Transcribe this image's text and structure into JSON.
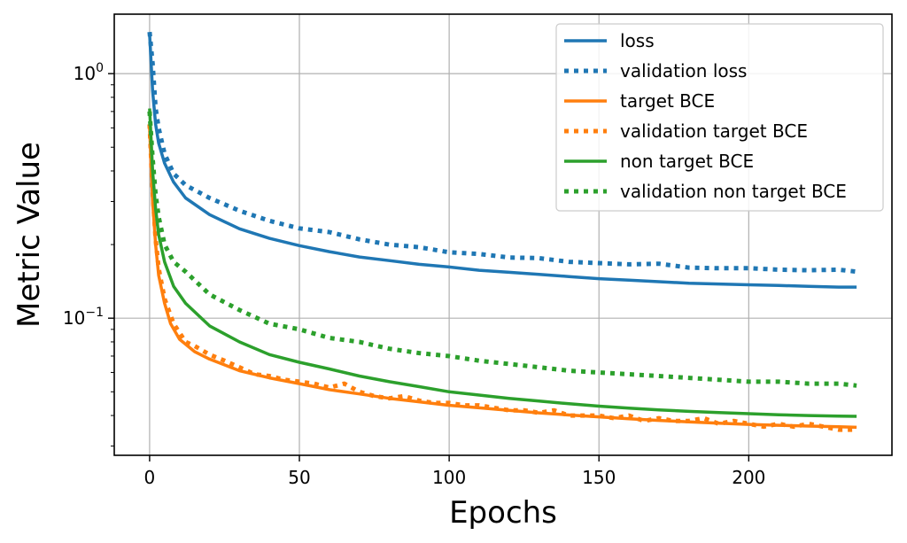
{
  "chart_data": {
    "type": "line",
    "xlabel": "Epochs",
    "ylabel": "Metric Value",
    "yscale": "log",
    "xlim": [
      -11.8,
      247.8
    ],
    "ylim": [
      0.0275,
      1.75
    ],
    "x_ticks": [
      0,
      50,
      100,
      150,
      200
    ],
    "y_ticks": [
      {
        "value": 1.0,
        "base": "10",
        "exp": "0"
      },
      {
        "value": 0.1,
        "base": "10",
        "exp": "−1"
      }
    ],
    "grid": true,
    "legend_position": "top-right",
    "series": [
      {
        "name": "loss",
        "color": "#1f77b4",
        "style": "solid",
        "points": [
          [
            0,
            1.45
          ],
          [
            1,
            0.85
          ],
          [
            2,
            0.62
          ],
          [
            3,
            0.52
          ],
          [
            5,
            0.43
          ],
          [
            8,
            0.36
          ],
          [
            12,
            0.31
          ],
          [
            20,
            0.265
          ],
          [
            30,
            0.232
          ],
          [
            40,
            0.212
          ],
          [
            50,
            0.198
          ],
          [
            60,
            0.187
          ],
          [
            70,
            0.178
          ],
          [
            80,
            0.172
          ],
          [
            90,
            0.166
          ],
          [
            100,
            0.162
          ],
          [
            110,
            0.157
          ],
          [
            120,
            0.154
          ],
          [
            130,
            0.151
          ],
          [
            140,
            0.148
          ],
          [
            150,
            0.145
          ],
          [
            160,
            0.143
          ],
          [
            170,
            0.141
          ],
          [
            180,
            0.139
          ],
          [
            190,
            0.138
          ],
          [
            200,
            0.137
          ],
          [
            210,
            0.136
          ],
          [
            220,
            0.135
          ],
          [
            230,
            0.134
          ],
          [
            236,
            0.134
          ]
        ]
      },
      {
        "name": "validation loss",
        "color": "#1f77b4",
        "style": "dotted",
        "points": [
          [
            0,
            1.48
          ],
          [
            1,
            1.1
          ],
          [
            2,
            0.72
          ],
          [
            3,
            0.6
          ],
          [
            5,
            0.47
          ],
          [
            8,
            0.39
          ],
          [
            12,
            0.35
          ],
          [
            20,
            0.31
          ],
          [
            30,
            0.275
          ],
          [
            40,
            0.25
          ],
          [
            50,
            0.233
          ],
          [
            60,
            0.225
          ],
          [
            70,
            0.21
          ],
          [
            80,
            0.2
          ],
          [
            90,
            0.195
          ],
          [
            100,
            0.186
          ],
          [
            110,
            0.183
          ],
          [
            120,
            0.177
          ],
          [
            130,
            0.176
          ],
          [
            140,
            0.17
          ],
          [
            150,
            0.168
          ],
          [
            160,
            0.166
          ],
          [
            170,
            0.167
          ],
          [
            180,
            0.161
          ],
          [
            190,
            0.16
          ],
          [
            200,
            0.16
          ],
          [
            210,
            0.158
          ],
          [
            220,
            0.157
          ],
          [
            230,
            0.158
          ],
          [
            236,
            0.155
          ]
        ]
      },
      {
        "name": "target BCE",
        "color": "#ff7f0e",
        "style": "solid",
        "points": [
          [
            0,
            0.6
          ],
          [
            1,
            0.3
          ],
          [
            2,
            0.2
          ],
          [
            3,
            0.15
          ],
          [
            5,
            0.115
          ],
          [
            7,
            0.095
          ],
          [
            10,
            0.082
          ],
          [
            15,
            0.073
          ],
          [
            20,
            0.068
          ],
          [
            30,
            0.061
          ],
          [
            40,
            0.057
          ],
          [
            50,
            0.054
          ],
          [
            60,
            0.051
          ],
          [
            70,
            0.049
          ],
          [
            80,
            0.047
          ],
          [
            90,
            0.0455
          ],
          [
            100,
            0.044
          ],
          [
            110,
            0.043
          ],
          [
            120,
            0.042
          ],
          [
            130,
            0.041
          ],
          [
            140,
            0.0402
          ],
          [
            150,
            0.0395
          ],
          [
            160,
            0.0388
          ],
          [
            170,
            0.0382
          ],
          [
            180,
            0.0377
          ],
          [
            190,
            0.0372
          ],
          [
            200,
            0.0368
          ],
          [
            210,
            0.0365
          ],
          [
            220,
            0.0362
          ],
          [
            230,
            0.036
          ],
          [
            236,
            0.0358
          ]
        ]
      },
      {
        "name": "validation target BCE",
        "color": "#ff7f0e",
        "style": "dotted",
        "points": [
          [
            0,
            0.62
          ],
          [
            1,
            0.33
          ],
          [
            2,
            0.21
          ],
          [
            3,
            0.16
          ],
          [
            5,
            0.12
          ],
          [
            8,
            0.095
          ],
          [
            12,
            0.08
          ],
          [
            15,
            0.077
          ],
          [
            20,
            0.071
          ],
          [
            25,
            0.067
          ],
          [
            30,
            0.063
          ],
          [
            35,
            0.059
          ],
          [
            40,
            0.058
          ],
          [
            45,
            0.056
          ],
          [
            50,
            0.055
          ],
          [
            55,
            0.054
          ],
          [
            60,
            0.052
          ],
          [
            65,
            0.054
          ],
          [
            70,
            0.05
          ],
          [
            75,
            0.048
          ],
          [
            80,
            0.047
          ],
          [
            85,
            0.048
          ],
          [
            90,
            0.046
          ],
          [
            95,
            0.045
          ],
          [
            100,
            0.045
          ],
          [
            105,
            0.044
          ],
          [
            110,
            0.044
          ],
          [
            115,
            0.043
          ],
          [
            120,
            0.042
          ],
          [
            125,
            0.042
          ],
          [
            130,
            0.041
          ],
          [
            135,
            0.042
          ],
          [
            140,
            0.04
          ],
          [
            145,
            0.04
          ],
          [
            150,
            0.04
          ],
          [
            155,
            0.039
          ],
          [
            160,
            0.04
          ],
          [
            165,
            0.038
          ],
          [
            170,
            0.039
          ],
          [
            175,
            0.038
          ],
          [
            180,
            0.038
          ],
          [
            185,
            0.039
          ],
          [
            190,
            0.037
          ],
          [
            195,
            0.038
          ],
          [
            200,
            0.037
          ],
          [
            205,
            0.036
          ],
          [
            210,
            0.037
          ],
          [
            215,
            0.036
          ],
          [
            220,
            0.037
          ],
          [
            225,
            0.036
          ],
          [
            230,
            0.035
          ],
          [
            236,
            0.035
          ]
        ]
      },
      {
        "name": "non target BCE",
        "color": "#2ca02c",
        "style": "solid",
        "points": [
          [
            0,
            0.72
          ],
          [
            1,
            0.4
          ],
          [
            2,
            0.28
          ],
          [
            3,
            0.22
          ],
          [
            5,
            0.17
          ],
          [
            8,
            0.135
          ],
          [
            12,
            0.115
          ],
          [
            20,
            0.093
          ],
          [
            30,
            0.08
          ],
          [
            40,
            0.071
          ],
          [
            50,
            0.066
          ],
          [
            60,
            0.062
          ],
          [
            70,
            0.058
          ],
          [
            80,
            0.055
          ],
          [
            90,
            0.0525
          ],
          [
            100,
            0.05
          ],
          [
            110,
            0.0485
          ],
          [
            120,
            0.047
          ],
          [
            130,
            0.0458
          ],
          [
            140,
            0.0447
          ],
          [
            150,
            0.0437
          ],
          [
            160,
            0.0429
          ],
          [
            170,
            0.0422
          ],
          [
            180,
            0.0416
          ],
          [
            190,
            0.0411
          ],
          [
            200,
            0.0407
          ],
          [
            210,
            0.0403
          ],
          [
            220,
            0.04
          ],
          [
            230,
            0.0398
          ],
          [
            236,
            0.0397
          ]
        ]
      },
      {
        "name": "validation non target BCE",
        "color": "#2ca02c",
        "style": "dotted",
        "points": [
          [
            0,
            0.7
          ],
          [
            1,
            0.45
          ],
          [
            2,
            0.32
          ],
          [
            3,
            0.26
          ],
          [
            5,
            0.2
          ],
          [
            8,
            0.17
          ],
          [
            12,
            0.155
          ],
          [
            20,
            0.125
          ],
          [
            30,
            0.108
          ],
          [
            40,
            0.095
          ],
          [
            50,
            0.09
          ],
          [
            60,
            0.083
          ],
          [
            70,
            0.08
          ],
          [
            80,
            0.075
          ],
          [
            90,
            0.072
          ],
          [
            100,
            0.07
          ],
          [
            110,
            0.067
          ],
          [
            120,
            0.065
          ],
          [
            130,
            0.063
          ],
          [
            140,
            0.061
          ],
          [
            150,
            0.06
          ],
          [
            160,
            0.059
          ],
          [
            170,
            0.058
          ],
          [
            180,
            0.057
          ],
          [
            190,
            0.056
          ],
          [
            200,
            0.055
          ],
          [
            210,
            0.055
          ],
          [
            220,
            0.054
          ],
          [
            230,
            0.054
          ],
          [
            236,
            0.053
          ]
        ]
      }
    ]
  }
}
